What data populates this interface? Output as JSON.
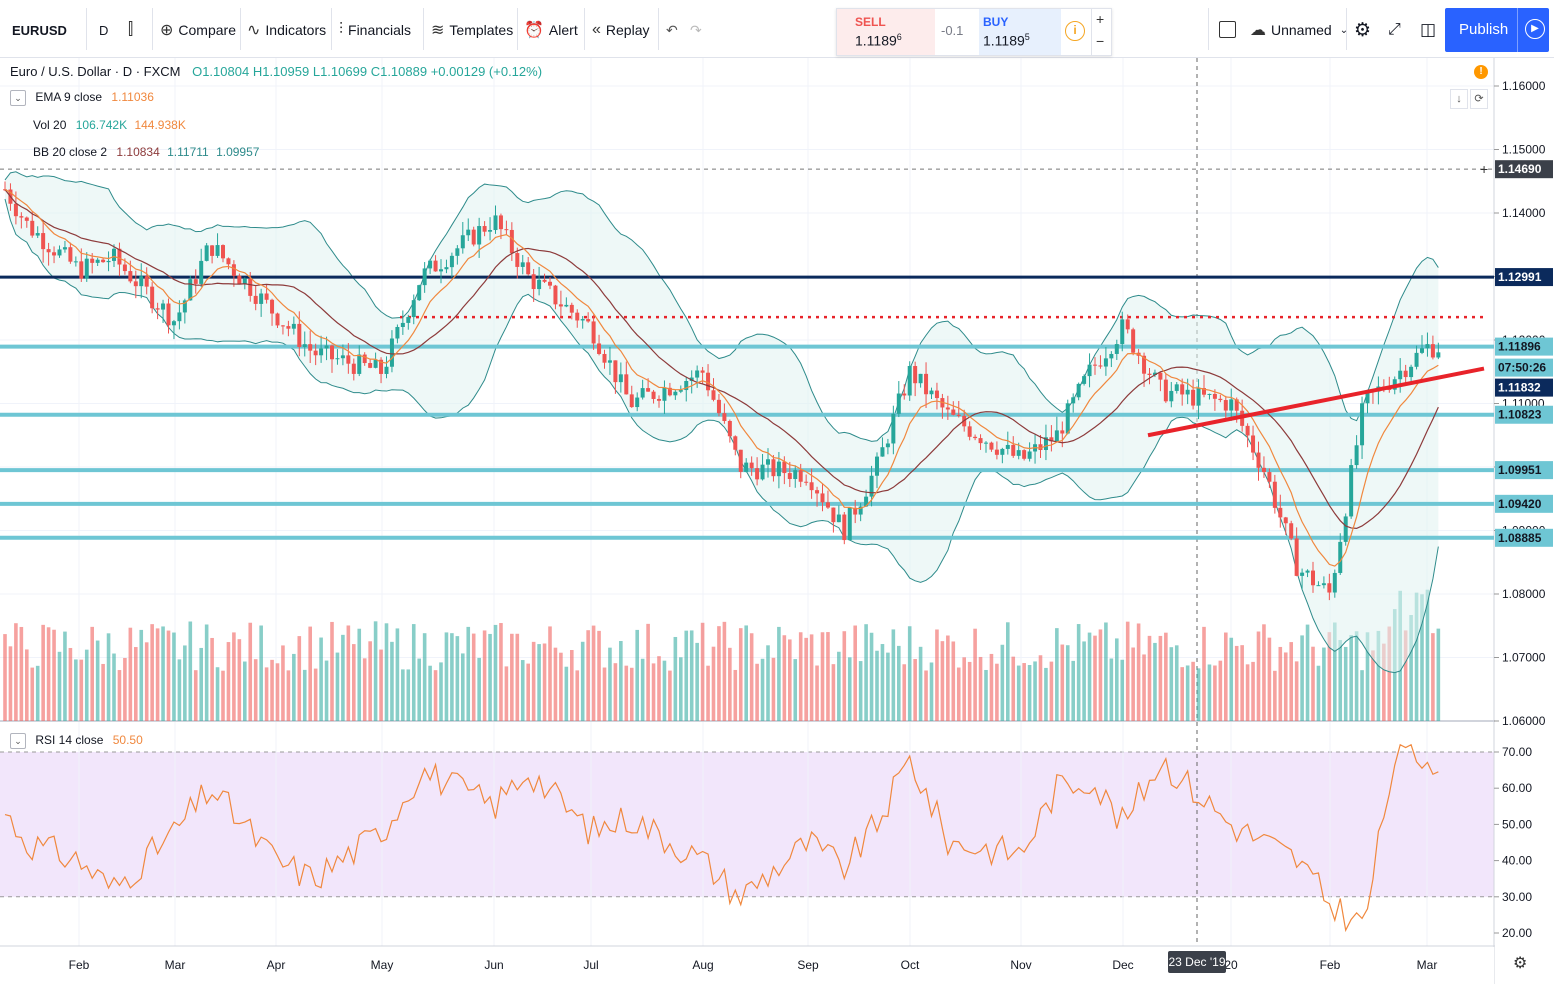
{
  "toolbar": {
    "symbol": "EURUSD",
    "interval": "D",
    "compare": "Compare",
    "indicators": "Indicators",
    "financials": "Financials",
    "templates": "Templates",
    "alert": "Alert",
    "replay": "Replay",
    "layout_name": "Unnamed",
    "publish": "Publish"
  },
  "trade": {
    "sell_label": "SELL",
    "sell_price_main": "1.1189",
    "sell_price_sup": "6",
    "spread": "-0.1",
    "buy_label": "BUY",
    "buy_price_main": "1.1189",
    "buy_price_sup": "5",
    "plus": "+",
    "minus": "−"
  },
  "legend": {
    "title": "Euro / U.S. Dollar · D · FXCM",
    "o": "O1.10804",
    "h": "H1.10959",
    "l": "L1.10699",
    "c": "C1.10889",
    "chg": "+0.00129 (+0.12%)",
    "ema_label": "EMA 9 close",
    "ema_value": "1.11036",
    "vol_label": "Vol 20",
    "vol_v1": "106.742K",
    "vol_v2": "144.938K",
    "bb_label": "BB 20 close 2",
    "bb_v1": "1.10834",
    "bb_v2": "1.11711",
    "bb_v3": "1.09957",
    "rsi_label": "RSI 14 close",
    "rsi_value": "50.50"
  },
  "colors": {
    "up": "#26a69a",
    "down": "#ef5350",
    "ema": "#f0883e",
    "sma": "#8d3b3b",
    "bb": "#2e8b8b",
    "level": "#6ec6d4",
    "navy": "#0b2a5c",
    "red_trend": "#e8232a",
    "rsi": "#f0883e",
    "rsi_bg": "#f2e6fb"
  },
  "chart_data": {
    "type": "candlestick",
    "symbol": "EURUSD",
    "ylim": [
      1.06,
      1.163
    ],
    "yticks": [
      "1.16000",
      "1.15000",
      "1.14000",
      "1.13000",
      "1.12000",
      "1.11000",
      "1.10000",
      "1.09000",
      "1.08000",
      "1.07000",
      "1.06000"
    ],
    "xticks": [
      "Feb",
      "Mar",
      "Apr",
      "May",
      "Jun",
      "Jul",
      "Aug",
      "Sep",
      "Oct",
      "Nov",
      "Dec",
      "20",
      "Feb",
      "Mar"
    ],
    "crosshair_date": "23 Dec '19",
    "price_labels": [
      {
        "value": 1.1469,
        "text": "1.14690",
        "style": "crosshair"
      },
      {
        "value": 1.12991,
        "text": "1.12991",
        "style": "navy"
      },
      {
        "value": 1.11896,
        "text": "1.11896",
        "style": "level"
      },
      {
        "value": 1.116,
        "text": "07:50:26",
        "style": "level"
      },
      {
        "value": 1.11832,
        "text": "1.11832",
        "style": "navy"
      },
      {
        "value": 1.10823,
        "text": "1.10823",
        "style": "level"
      },
      {
        "value": 1.09951,
        "text": "1.09951",
        "style": "level"
      },
      {
        "value": 1.0942,
        "text": "1.09420",
        "style": "level"
      },
      {
        "value": 1.08885,
        "text": "1.08885",
        "style": "level"
      }
    ],
    "horizontal_levels": [
      {
        "value": 1.12991,
        "style": "navy"
      },
      {
        "value": 1.1236,
        "style": "red-dotted"
      },
      {
        "value": 1.11896,
        "style": "level"
      },
      {
        "value": 1.10823,
        "style": "level"
      },
      {
        "value": 1.09951,
        "style": "level"
      },
      {
        "value": 1.0942,
        "style": "level"
      },
      {
        "value": 1.08885,
        "style": "level"
      },
      {
        "value": 1.1469,
        "style": "dashed"
      }
    ],
    "trendline": {
      "start": [
        "Dec",
        1.105
      ],
      "end": [
        "Mar",
        1.1155
      ]
    },
    "price_path": [
      [
        "Jan",
        1.145
      ],
      [
        "Feb",
        1.138
      ],
      [
        "Feb",
        1.131
      ],
      [
        "Mar",
        1.133
      ],
      [
        "Mar",
        1.123
      ],
      [
        "Apr",
        1.135
      ],
      [
        "Apr",
        1.124
      ],
      [
        "May",
        1.118
      ],
      [
        "May",
        1.115
      ],
      [
        "Jun",
        1.13
      ],
      [
        "Jun",
        1.139
      ],
      [
        "Jul",
        1.13
      ],
      [
        "Jul",
        1.122
      ],
      [
        "Aug",
        1.11
      ],
      [
        "Aug",
        1.115
      ],
      [
        "Sep",
        1.1
      ],
      [
        "Sep",
        1.099
      ],
      [
        "Oct",
        1.09
      ],
      [
        "Oct",
        1.1
      ],
      [
        "Oct",
        1.115
      ],
      [
        "Nov",
        1.108
      ],
      [
        "Nov",
        1.101
      ],
      [
        "Dec",
        1.105
      ],
      [
        "Dec",
        1.115
      ],
      [
        "Dec",
        1.122
      ],
      [
        "20",
        1.112
      ],
      [
        "20",
        1.11
      ],
      [
        "Feb",
        1.099
      ],
      [
        "Feb",
        1.084
      ],
      [
        "Feb",
        1.08
      ],
      [
        "Mar",
        1.11
      ],
      [
        "Mar",
        1.1189
      ]
    ],
    "rsi": {
      "ylim": [
        15,
        75
      ],
      "yticks": [
        "70.00",
        "60.00",
        "50.00",
        "40.00",
        "30.00",
        "20.00"
      ],
      "band": [
        30,
        70
      ],
      "path": [
        [
          "Jan",
          55
        ],
        [
          "Feb",
          45
        ],
        [
          "Feb",
          40
        ],
        [
          "Mar",
          32
        ],
        [
          "Mar",
          48
        ],
        [
          "Apr",
          60
        ],
        [
          "Apr",
          40
        ],
        [
          "May",
          35
        ],
        [
          "May",
          48
        ],
        [
          "Jun",
          65
        ],
        [
          "Jun",
          55
        ],
        [
          "Jul",
          65
        ],
        [
          "Jul",
          48
        ],
        [
          "Aug",
          52
        ],
        [
          "Aug",
          40
        ],
        [
          "Sep",
          30
        ],
        [
          "Sep",
          45
        ],
        [
          "Oct",
          38
        ],
        [
          "Oct",
          50
        ],
        [
          "Oct",
          68
        ],
        [
          "Nov",
          45
        ],
        [
          "Nov",
          42
        ],
        [
          "Dec",
          60
        ],
        [
          "Dec",
          63
        ],
        [
          "Dec",
          50
        ],
        [
          "20",
          68
        ],
        [
          "20",
          50
        ],
        [
          "Feb",
          45
        ],
        [
          "Feb",
          40
        ],
        [
          "Feb",
          28
        ],
        [
          "Mar",
          22
        ],
        [
          "Mar",
          70
        ],
        [
          "Mar",
          68
        ]
      ]
    },
    "volume": {
      "ylim": [
        0,
        220000
      ]
    }
  }
}
